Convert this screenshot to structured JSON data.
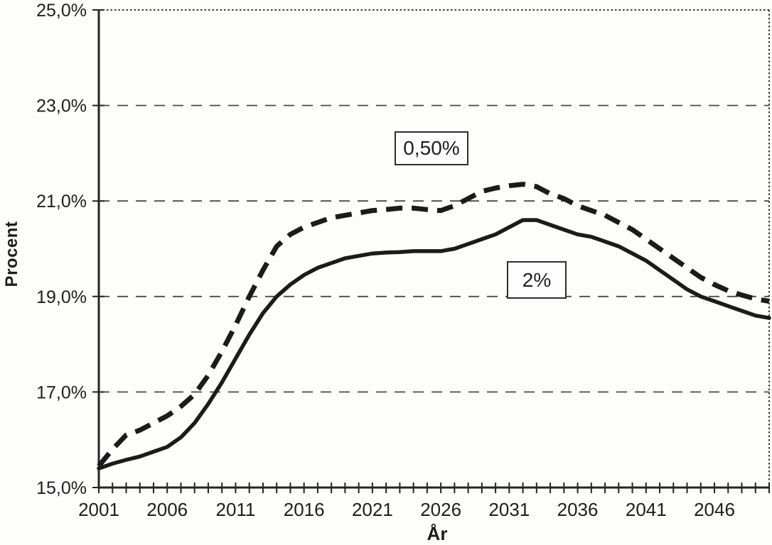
{
  "axes": {
    "y_title": "Procent",
    "x_title": "År"
  },
  "annotations": {
    "dashed": "0,50%",
    "solid": "2%"
  },
  "chart_data": {
    "type": "line",
    "title": "",
    "xlabel": "År",
    "ylabel": "Procent",
    "xlim": [
      2001,
      2050
    ],
    "ylim": [
      15.0,
      25.0
    ],
    "grid": "horizontal-dashed",
    "grid_values": [
      23,
      21,
      19,
      17
    ],
    "y_ticks": [
      25,
      23,
      21,
      19,
      17,
      15
    ],
    "y_tick_labels": [
      "25,0%",
      "23,0%",
      "21,0%",
      "19,0%",
      "17,0%",
      "15,0%"
    ],
    "x_minor_tick_step": 1,
    "x_major_ticks": [
      2001,
      2006,
      2011,
      2016,
      2021,
      2026,
      2031,
      2036,
      2041,
      2046
    ],
    "x_tick_labels": [
      "2001",
      "2006",
      "2011",
      "2016",
      "2021",
      "2026",
      "2031",
      "2036",
      "2041",
      "2046"
    ],
    "legend": "inline-annotation-boxes",
    "x": [
      2001,
      2002,
      2003,
      2004,
      2005,
      2006,
      2007,
      2008,
      2009,
      2010,
      2011,
      2012,
      2013,
      2014,
      2015,
      2016,
      2017,
      2018,
      2019,
      2020,
      2021,
      2022,
      2023,
      2024,
      2025,
      2026,
      2027,
      2028,
      2029,
      2030,
      2031,
      2032,
      2033,
      2034,
      2035,
      2036,
      2037,
      2038,
      2039,
      2040,
      2041,
      2042,
      2043,
      2044,
      2045,
      2046,
      2047,
      2048,
      2049,
      2050
    ],
    "series": [
      {
        "name": "0,50%",
        "style": "dashed",
        "values": [
          15.45,
          15.8,
          16.1,
          16.2,
          16.35,
          16.5,
          16.7,
          16.95,
          17.35,
          17.85,
          18.4,
          19.0,
          19.55,
          20.05,
          20.3,
          20.45,
          20.55,
          20.65,
          20.7,
          20.75,
          20.8,
          20.82,
          20.85,
          20.85,
          20.82,
          20.8,
          20.9,
          21.05,
          21.2,
          21.27,
          21.32,
          21.35,
          21.3,
          21.15,
          21.05,
          20.9,
          20.8,
          20.7,
          20.55,
          20.4,
          20.2,
          20.0,
          19.8,
          19.6,
          19.4,
          19.25,
          19.12,
          19.03,
          18.95,
          18.9
        ]
      },
      {
        "name": "2%",
        "style": "solid",
        "values": [
          15.4,
          15.5,
          15.58,
          15.65,
          15.75,
          15.85,
          16.05,
          16.35,
          16.75,
          17.2,
          17.7,
          18.2,
          18.65,
          19.0,
          19.25,
          19.45,
          19.6,
          19.7,
          19.8,
          19.85,
          19.9,
          19.92,
          19.93,
          19.95,
          19.95,
          19.95,
          20.0,
          20.1,
          20.2,
          20.3,
          20.45,
          20.6,
          20.6,
          20.5,
          20.4,
          20.3,
          20.25,
          20.15,
          20.05,
          19.9,
          19.75,
          19.55,
          19.35,
          19.15,
          19.0,
          18.9,
          18.8,
          18.7,
          18.6,
          18.55
        ]
      }
    ],
    "colors": {
      "ink": "#1b1b1b",
      "grid": "#4a4a4a",
      "frame_dotted": "#3a3a3a",
      "background": "#fdfdfc"
    }
  }
}
